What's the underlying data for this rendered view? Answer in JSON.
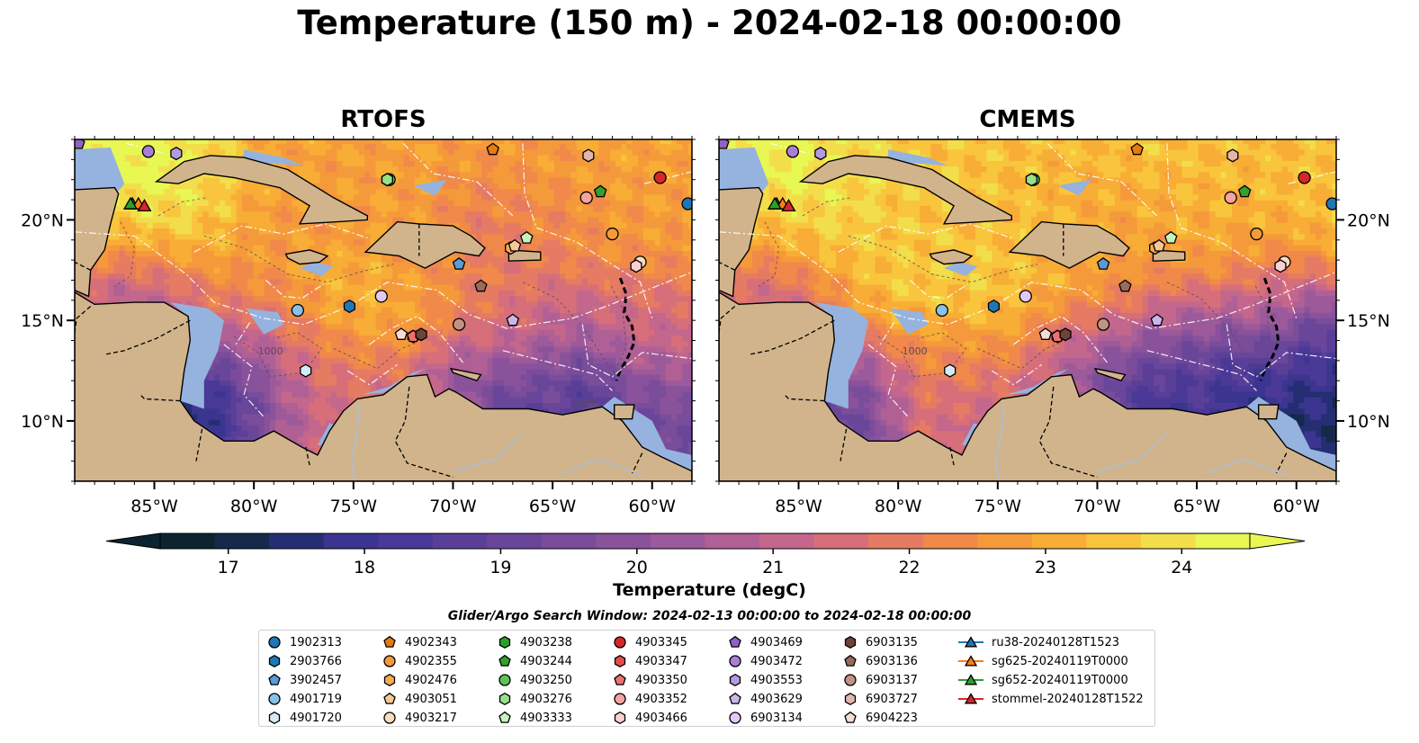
{
  "title": "Temperature (150 m) - 2024-02-18 00:00:00",
  "panels": [
    {
      "title": "RTOFS",
      "variant": "rtofs"
    },
    {
      "title": "CMEMS",
      "variant": "cmems"
    }
  ],
  "map": {
    "lon_range": [
      -89,
      -58
    ],
    "lat_range": [
      7,
      24
    ],
    "x_ticks": [
      "85°W",
      "80°W",
      "75°W",
      "70°W",
      "65°W",
      "60°W"
    ],
    "x_tick_values": [
      -85,
      -80,
      -75,
      -70,
      -65,
      -60
    ],
    "y_ticks": [
      "20°N",
      "15°N",
      "10°N"
    ],
    "y_tick_values": [
      20,
      15,
      10
    ],
    "land_color": "#d2b48c",
    "shelf_color": "#95b3de",
    "deep_color": "#08253a",
    "contour_color": "#ffffff",
    "isobath_label": "1000"
  },
  "colorbar": {
    "label": "Temperature (degC)",
    "ticks": [
      "17",
      "18",
      "19",
      "20",
      "21",
      "22",
      "23",
      "24"
    ],
    "min": 16.5,
    "max": 24.5,
    "colors": [
      "#0b2430",
      "#15294b",
      "#252e73",
      "#3b3590",
      "#4a3996",
      "#5a3f98",
      "#6a469a",
      "#7a4d9b",
      "#8a529b",
      "#9c5a9a",
      "#b06095",
      "#c4678c",
      "#d66f79",
      "#e57b62",
      "#f0894a",
      "#f59a3a",
      "#f8ad36",
      "#f8c53c",
      "#f2de4a",
      "#e8f752"
    ],
    "extend": "both"
  },
  "search_window": "Glider/Argo Search Window: 2024-02-13 00:00:00 to 2024-02-18 00:00:00",
  "legend": [
    {
      "label": "1902313",
      "marker": "circle",
      "color": "#1f77b4",
      "lon": -58.2,
      "lat": 20.8
    },
    {
      "label": "2903766",
      "marker": "hexagon",
      "color": "#1f77b4",
      "lon": -75.2,
      "lat": 15.7
    },
    {
      "label": "3902457",
      "marker": "pentagon",
      "color": "#5b9ad6",
      "lon": -69.7,
      "lat": 17.8
    },
    {
      "label": "4901719",
      "marker": "circle",
      "color": "#88c0e8",
      "lon": -77.8,
      "lat": 15.5
    },
    {
      "label": "4901720",
      "marker": "hexagon",
      "color": "#d4eaf8",
      "lon": -77.4,
      "lat": 12.5
    },
    {
      "label": "4902343",
      "marker": "pentagon",
      "color": "#e87a10",
      "lon": -68.0,
      "lat": 23.5
    },
    {
      "label": "4902355",
      "marker": "circle",
      "color": "#f39a3a",
      "lon": -62.0,
      "lat": 19.3
    },
    {
      "label": "4902476",
      "marker": "hexagon",
      "color": "#f6aa55",
      "lon": -67.1,
      "lat": 18.6
    },
    {
      "label": "4903051",
      "marker": "pentagon",
      "color": "#f8c797",
      "lon": -66.9,
      "lat": 18.7
    },
    {
      "label": "4903217",
      "marker": "circle",
      "color": "#fcdcbf",
      "lon": -60.6,
      "lat": 17.9
    },
    {
      "label": "4903238",
      "marker": "hexagon",
      "color": "#2ca02c",
      "lon": -73.3,
      "lat": 22.0
    },
    {
      "label": "4903244",
      "marker": "pentagon",
      "color": "#33a02c",
      "lon": -62.6,
      "lat": 21.4
    },
    {
      "label": "4903250",
      "marker": "circle",
      "color": "#5ac45a",
      "lon": -73.2,
      "lat": 22.0
    },
    {
      "label": "4903276",
      "marker": "hexagon",
      "color": "#98df8a",
      "lon": -73.3,
      "lat": 22.0
    },
    {
      "label": "4903333",
      "marker": "pentagon",
      "color": "#c8f2bc",
      "lon": -66.3,
      "lat": 19.1
    },
    {
      "label": "4903345",
      "marker": "circle",
      "color": "#d62728",
      "lon": -59.6,
      "lat": 22.1
    },
    {
      "label": "4903347",
      "marker": "hexagon",
      "color": "#e84a4a",
      "lon": -72.0,
      "lat": 14.2
    },
    {
      "label": "4903350",
      "marker": "pentagon",
      "color": "#f07070",
      "lon": -72.0,
      "lat": 14.2
    },
    {
      "label": "4903352",
      "marker": "circle",
      "color": "#f7a1a1",
      "lon": -63.3,
      "lat": 21.1
    },
    {
      "label": "4903466",
      "marker": "hexagon",
      "color": "#fbd0d0",
      "lon": -60.8,
      "lat": 17.7
    },
    {
      "label": "4903469",
      "marker": "pentagon",
      "color": "#8e63c7",
      "lon": -88.8,
      "lat": 23.8
    },
    {
      "label": "4903472",
      "marker": "circle",
      "color": "#a97fd6",
      "lon": -85.3,
      "lat": 23.4
    },
    {
      "label": "4903553",
      "marker": "hexagon",
      "color": "#b49ae0",
      "lon": -83.9,
      "lat": 23.3
    },
    {
      "label": "4903629",
      "marker": "pentagon",
      "color": "#cbb6ec",
      "lon": -67.0,
      "lat": 15.0
    },
    {
      "label": "6903134",
      "marker": "circle",
      "color": "#e2c8f6",
      "lon": -73.6,
      "lat": 16.2
    },
    {
      "label": "6903135",
      "marker": "hexagon",
      "color": "#6e4436",
      "lon": -71.6,
      "lat": 14.3
    },
    {
      "label": "6903136",
      "marker": "pentagon",
      "color": "#9a6b5b",
      "lon": -68.6,
      "lat": 16.7
    },
    {
      "label": "6903137",
      "marker": "circle",
      "color": "#c29384",
      "lon": -69.7,
      "lat": 14.8
    },
    {
      "label": "6903727",
      "marker": "hexagon",
      "color": "#e2b6aa",
      "lon": -63.2,
      "lat": 23.2
    },
    {
      "label": "6904223",
      "marker": "pentagon",
      "color": "#f6dcd4",
      "lon": -72.6,
      "lat": 14.3
    },
    {
      "label": "ru38-20240128T1523",
      "marker": "triangle",
      "color": "#1f77b4",
      "line": true,
      "lon": -86.1,
      "lat": 20.8
    },
    {
      "label": "sg625-20240119T0000",
      "marker": "triangle",
      "color": "#ff7f0e",
      "line": true,
      "lon": -85.8,
      "lat": 20.8
    },
    {
      "label": "sg652-20240119T0000",
      "marker": "triangle",
      "color": "#2ca02c",
      "line": true,
      "lon": -86.2,
      "lat": 20.8
    },
    {
      "label": "stommel-20240128T1522",
      "marker": "triangle",
      "color": "#d62728",
      "line": true,
      "lon": -85.5,
      "lat": 20.7
    }
  ]
}
